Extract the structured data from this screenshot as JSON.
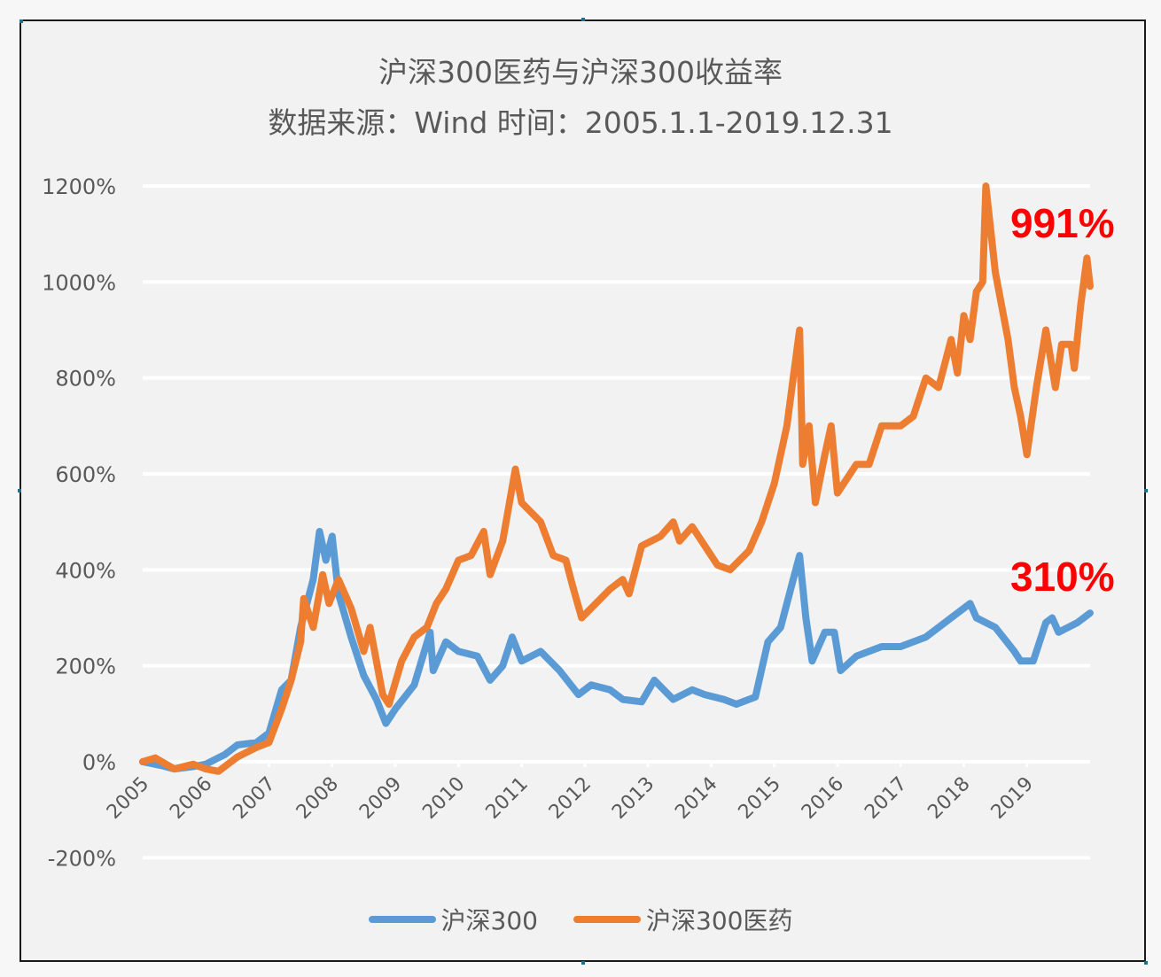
{
  "chart_data": {
    "type": "line",
    "title": "沪深300医药与沪深300收益率",
    "subtitle": "数据来源：Wind 时间：2005.1.1-2019.12.31",
    "xlabel": "",
    "ylabel": "",
    "x_ticks": [
      "2005",
      "2006",
      "2007",
      "2008",
      "2009",
      "2010",
      "2011",
      "2012",
      "2013",
      "2014",
      "2015",
      "2016",
      "2017",
      "2018",
      "2019"
    ],
    "xlim": [
      2005,
      2020
    ],
    "ylim": [
      -200,
      1200
    ],
    "y_ticks": [
      -200,
      0,
      200,
      400,
      600,
      800,
      1000,
      1200
    ],
    "y_tick_labels": [
      "-200%",
      "0%",
      "200%",
      "400%",
      "600%",
      "800%",
      "1000%",
      "1200%"
    ],
    "grid": true,
    "legend_position": "bottom",
    "series": [
      {
        "name": "沪深300",
        "color": "#5b9bd5",
        "x": [
          2005.0,
          2005.3,
          2005.5,
          2005.8,
          2006.0,
          2006.3,
          2006.5,
          2006.8,
          2007.0,
          2007.2,
          2007.35,
          2007.5,
          2007.7,
          2007.8,
          2007.9,
          2008.0,
          2008.1,
          2008.3,
          2008.5,
          2008.7,
          2008.85,
          2009.0,
          2009.3,
          2009.55,
          2009.6,
          2009.8,
          2010.0,
          2010.3,
          2010.5,
          2010.7,
          2010.85,
          2011.0,
          2011.3,
          2011.6,
          2011.9,
          2012.1,
          2012.4,
          2012.6,
          2012.9,
          2013.1,
          2013.4,
          2013.7,
          2013.9,
          2014.2,
          2014.4,
          2014.7,
          2014.9,
          2015.1,
          2015.3,
          2015.4,
          2015.5,
          2015.6,
          2015.8,
          2015.95,
          2016.05,
          2016.3,
          2016.7,
          2017.0,
          2017.4,
          2017.7,
          2018.0,
          2018.1,
          2018.2,
          2018.5,
          2018.8,
          2018.9,
          2019.1,
          2019.3,
          2019.4,
          2019.5,
          2019.8,
          2020.0
        ],
        "values": [
          0,
          -8,
          -15,
          -10,
          -5,
          15,
          35,
          40,
          60,
          150,
          170,
          280,
          380,
          480,
          420,
          470,
          350,
          260,
          180,
          130,
          80,
          110,
          160,
          270,
          190,
          250,
          230,
          220,
          170,
          200,
          260,
          210,
          230,
          190,
          140,
          160,
          150,
          130,
          125,
          170,
          130,
          150,
          140,
          130,
          120,
          135,
          250,
          280,
          380,
          430,
          300,
          210,
          270,
          270,
          190,
          220,
          240,
          240,
          260,
          290,
          320,
          330,
          300,
          280,
          230,
          210,
          210,
          290,
          300,
          270,
          290,
          310
        ]
      },
      {
        "name": "沪深300医药",
        "color": "#ed7d31",
        "x": [
          2005.0,
          2005.2,
          2005.5,
          2005.8,
          2006.0,
          2006.2,
          2006.5,
          2006.8,
          2007.0,
          2007.2,
          2007.35,
          2007.5,
          2007.55,
          2007.7,
          2007.85,
          2007.95,
          2008.1,
          2008.3,
          2008.5,
          2008.6,
          2008.8,
          2008.9,
          2009.1,
          2009.3,
          2009.5,
          2009.65,
          2009.8,
          2010.0,
          2010.2,
          2010.4,
          2010.5,
          2010.7,
          2010.9,
          2011.0,
          2011.3,
          2011.5,
          2011.7,
          2011.8,
          2011.95,
          2012.1,
          2012.4,
          2012.6,
          2012.7,
          2012.9,
          2013.2,
          2013.4,
          2013.5,
          2013.7,
          2013.9,
          2014.1,
          2014.3,
          2014.6,
          2014.8,
          2015.0,
          2015.2,
          2015.3,
          2015.4,
          2015.45,
          2015.55,
          2015.65,
          2015.8,
          2015.9,
          2016.0,
          2016.3,
          2016.5,
          2016.7,
          2017.0,
          2017.2,
          2017.4,
          2017.6,
          2017.8,
          2017.9,
          2018.0,
          2018.1,
          2018.2,
          2018.3,
          2018.35,
          2018.5,
          2018.7,
          2018.8,
          2018.9,
          2019.0,
          2019.15,
          2019.3,
          2019.45,
          2019.55,
          2019.7,
          2019.75,
          2019.85,
          2019.95,
          2020.0
        ],
        "values": [
          0,
          8,
          -15,
          -5,
          -15,
          -20,
          10,
          30,
          40,
          110,
          170,
          250,
          340,
          280,
          390,
          330,
          380,
          320,
          230,
          280,
          140,
          120,
          210,
          260,
          280,
          330,
          360,
          420,
          430,
          480,
          390,
          460,
          610,
          540,
          500,
          430,
          420,
          370,
          300,
          320,
          360,
          380,
          350,
          450,
          470,
          500,
          460,
          490,
          450,
          410,
          400,
          440,
          500,
          580,
          700,
          800,
          900,
          620,
          700,
          540,
          640,
          700,
          560,
          620,
          620,
          700,
          700,
          720,
          800,
          780,
          880,
          810,
          930,
          880,
          980,
          1000,
          1200,
          1020,
          880,
          780,
          720,
          640,
          780,
          900,
          780,
          870,
          870,
          820,
          950,
          1050,
          991
        ]
      }
    ],
    "annotations": [
      {
        "text": "991%",
        "series": "沪深300医药",
        "color": "#ff0000"
      },
      {
        "text": "310%",
        "series": "沪深300",
        "color": "#ff0000"
      }
    ]
  }
}
